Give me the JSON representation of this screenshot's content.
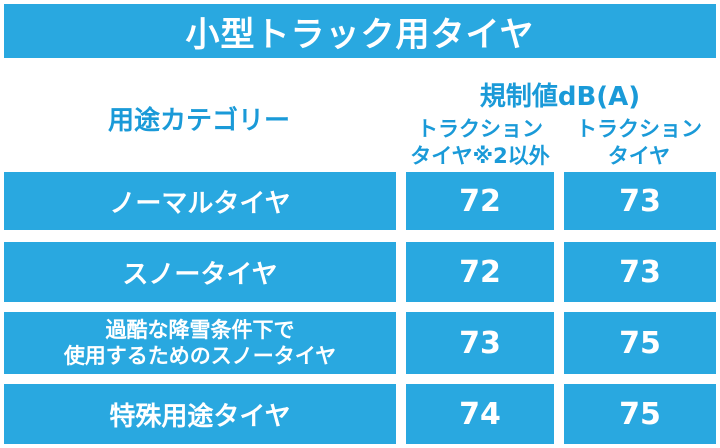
{
  "title": "小型トラック用タイヤ",
  "header": {
    "category": "用途カテゴリー",
    "regulation": "規制値dB(A)",
    "col1": [
      "トラクション",
      "タイヤ※2以外"
    ],
    "col2": [
      "トラクション",
      "タイヤ"
    ]
  },
  "rows": [
    {
      "label": [
        "ノーマルタイヤ"
      ],
      "v1": "72",
      "v2": "73"
    },
    {
      "label": [
        "スノータイヤ"
      ],
      "v1": "72",
      "v2": "73"
    },
    {
      "label": [
        "過酷な降雪条件下で",
        "使用するためのスノータイヤ"
      ],
      "v1": "73",
      "v2": "75"
    },
    {
      "label": [
        "特殊用途タイヤ"
      ],
      "v1": "74",
      "v2": "75"
    }
  ],
  "colors": {
    "accent": "#29a8e0",
    "header_text": "#1a9ad8",
    "cell_text": "#ffffff"
  }
}
